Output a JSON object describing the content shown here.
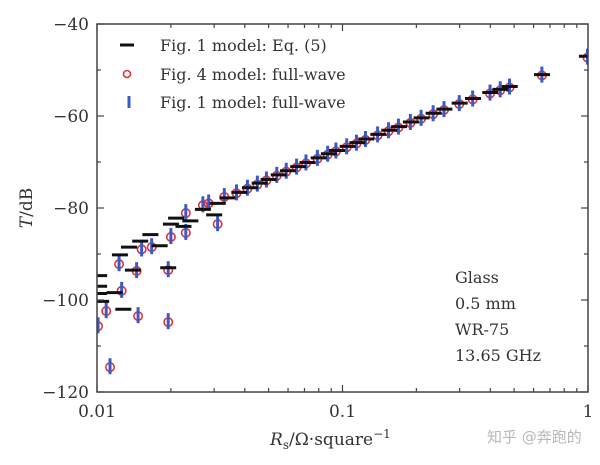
{
  "chart_data": {
    "type": "scatter",
    "title": "",
    "xlabel": "R_s/Ω·square^-1",
    "xlabel_parts": {
      "main": "R",
      "sub": "s",
      "rest": "/Ω·square",
      "sup": "−1"
    },
    "ylabel": "T/dB",
    "ylabel_parts": {
      "italic": "T",
      "rest": "/dB"
    },
    "xscale": "log",
    "xlim": [
      0.01,
      1
    ],
    "ylim": [
      -120,
      -40
    ],
    "xticks": [
      {
        "value": 0.01,
        "label": "0.01"
      },
      {
        "value": 0.1,
        "label": "0.1"
      },
      {
        "value": 1,
        "label": "1"
      }
    ],
    "yticks": [
      {
        "value": -40,
        "label": "−40"
      },
      {
        "value": -60,
        "label": "−60"
      },
      {
        "value": -80,
        "label": "−80"
      },
      {
        "value": -100,
        "label": "−100"
      },
      {
        "value": -120,
        "label": "−120"
      }
    ],
    "y_minor_step": 10,
    "grid": false,
    "legend_position": "top-left",
    "series": [
      {
        "name": "Fig. 1 model: Eq. (5)",
        "marker": "hline",
        "color": "#111111",
        "points": [
          [
            0.0102,
            -94.7
          ],
          [
            0.0102,
            -97.0
          ],
          [
            0.0102,
            -98.6
          ],
          [
            0.0104,
            -100.3
          ],
          [
            0.0118,
            -98.4
          ],
          [
            0.0128,
            -102.0
          ],
          [
            0.0124,
            -90.2
          ],
          [
            0.014,
            -93.5
          ],
          [
            0.0135,
            -88.5
          ],
          [
            0.015,
            -87.2
          ],
          [
            0.0165,
            -85.8
          ],
          [
            0.018,
            -88.2
          ],
          [
            0.0195,
            -93.0
          ],
          [
            0.02,
            -83.5
          ],
          [
            0.021,
            -82.2
          ],
          [
            0.0225,
            -84.0
          ],
          [
            0.024,
            -82.8
          ],
          [
            0.027,
            -80.3
          ],
          [
            0.03,
            -81.5
          ],
          [
            0.031,
            -79.0
          ],
          [
            0.034,
            -77.8
          ],
          [
            0.038,
            -76.6
          ],
          [
            0.042,
            -75.6
          ],
          [
            0.046,
            -74.6
          ],
          [
            0.05,
            -73.8
          ],
          [
            0.055,
            -72.8
          ],
          [
            0.06,
            -71.9
          ],
          [
            0.066,
            -71.0
          ],
          [
            0.072,
            -70.1
          ],
          [
            0.08,
            -69.1
          ],
          [
            0.088,
            -68.2
          ],
          [
            0.095,
            -67.5
          ],
          [
            0.105,
            -66.6
          ],
          [
            0.115,
            -65.8
          ],
          [
            0.125,
            -65.0
          ],
          [
            0.14,
            -64.0
          ],
          [
            0.155,
            -63.1
          ],
          [
            0.17,
            -62.3
          ],
          [
            0.19,
            -61.3
          ],
          [
            0.21,
            -60.4
          ],
          [
            0.235,
            -59.4
          ],
          [
            0.26,
            -58.5
          ],
          [
            0.3,
            -57.2
          ],
          [
            0.34,
            -56.2
          ],
          [
            0.4,
            -54.9
          ],
          [
            0.44,
            -54.2
          ],
          [
            0.48,
            -53.6
          ],
          [
            0.65,
            -51.0
          ],
          [
            0.99,
            -47.0
          ]
        ]
      },
      {
        "name": "Fig. 4 model: full-wave",
        "marker": "circle",
        "color": "#e0323c",
        "points": [
          [
            0.0101,
            -105.7
          ],
          [
            0.0109,
            -102.4
          ],
          [
            0.0113,
            -114.6
          ],
          [
            0.0126,
            -98.0
          ],
          [
            0.0123,
            -92.2
          ],
          [
            0.0147,
            -103.5
          ],
          [
            0.0145,
            -93.7
          ],
          [
            0.0152,
            -89.0
          ],
          [
            0.0167,
            -88.5
          ],
          [
            0.0195,
            -104.8
          ],
          [
            0.0195,
            -93.5
          ],
          [
            0.02,
            -86.3
          ],
          [
            0.023,
            -85.4
          ],
          [
            0.023,
            -81.1
          ],
          [
            0.031,
            -83.5
          ],
          [
            0.027,
            -79.4
          ],
          [
            0.0285,
            -79.0
          ],
          [
            0.033,
            -77.6
          ],
          [
            0.037,
            -76.8
          ],
          [
            0.041,
            -75.8
          ],
          [
            0.045,
            -74.9
          ],
          [
            0.049,
            -74.0
          ],
          [
            0.054,
            -73.0
          ],
          [
            0.059,
            -72.1
          ],
          [
            0.065,
            -71.2
          ],
          [
            0.071,
            -70.3
          ],
          [
            0.079,
            -69.3
          ],
          [
            0.087,
            -68.4
          ],
          [
            0.094,
            -67.7
          ],
          [
            0.104,
            -66.8
          ],
          [
            0.114,
            -66.0
          ],
          [
            0.124,
            -65.2
          ],
          [
            0.139,
            -64.2
          ],
          [
            0.154,
            -63.3
          ],
          [
            0.169,
            -62.5
          ],
          [
            0.189,
            -61.5
          ],
          [
            0.209,
            -60.6
          ],
          [
            0.234,
            -59.6
          ],
          [
            0.259,
            -58.7
          ],
          [
            0.299,
            -57.4
          ],
          [
            0.339,
            -56.4
          ],
          [
            0.399,
            -55.1
          ],
          [
            0.439,
            -54.4
          ],
          [
            0.479,
            -53.8
          ],
          [
            0.649,
            -51.2
          ],
          [
            0.995,
            -47.3
          ]
        ]
      },
      {
        "name": "Fig. 1 model: full-wave",
        "marker": "vline",
        "color": "#3a5bc7",
        "points": [
          [
            0.0101,
            -105.5
          ],
          [
            0.0109,
            -102.2
          ],
          [
            0.0113,
            -114.4
          ],
          [
            0.0126,
            -97.8
          ],
          [
            0.0123,
            -92.0
          ],
          [
            0.0147,
            -103.3
          ],
          [
            0.0145,
            -93.5
          ],
          [
            0.0152,
            -88.8
          ],
          [
            0.0167,
            -88.3
          ],
          [
            0.0195,
            -104.6
          ],
          [
            0.0195,
            -93.3
          ],
          [
            0.02,
            -86.1
          ],
          [
            0.023,
            -85.2
          ],
          [
            0.023,
            -80.9
          ],
          [
            0.031,
            -83.3
          ],
          [
            0.027,
            -79.2
          ],
          [
            0.0285,
            -78.8
          ],
          [
            0.033,
            -77.4
          ],
          [
            0.037,
            -76.6
          ],
          [
            0.041,
            -75.6
          ],
          [
            0.045,
            -74.7
          ],
          [
            0.049,
            -73.8
          ],
          [
            0.054,
            -72.8
          ],
          [
            0.059,
            -71.9
          ],
          [
            0.065,
            -71.0
          ],
          [
            0.071,
            -70.1
          ],
          [
            0.079,
            -69.1
          ],
          [
            0.087,
            -68.2
          ],
          [
            0.094,
            -67.5
          ],
          [
            0.104,
            -66.6
          ],
          [
            0.114,
            -65.8
          ],
          [
            0.124,
            -65.0
          ],
          [
            0.139,
            -64.0
          ],
          [
            0.154,
            -63.1
          ],
          [
            0.169,
            -62.3
          ],
          [
            0.189,
            -61.3
          ],
          [
            0.209,
            -60.4
          ],
          [
            0.234,
            -59.4
          ],
          [
            0.259,
            -58.5
          ],
          [
            0.299,
            -57.2
          ],
          [
            0.339,
            -56.2
          ],
          [
            0.399,
            -54.9
          ],
          [
            0.439,
            -54.2
          ],
          [
            0.479,
            -53.6
          ],
          [
            0.649,
            -51.0
          ],
          [
            0.995,
            -47.1
          ]
        ]
      }
    ],
    "annotations": [
      "Glass",
      "0.5 mm",
      "WR-75",
      "13.65 GHz"
    ],
    "annotation_position": "bottom-right"
  },
  "watermark": "知乎 @奔跑的"
}
